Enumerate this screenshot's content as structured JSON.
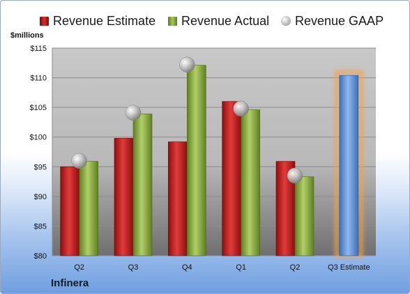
{
  "chart_data": {
    "type": "bar",
    "ylabel": "$millions",
    "ylim": [
      80,
      115
    ],
    "yticks": [
      80,
      85,
      90,
      95,
      100,
      105,
      110,
      115
    ],
    "ytick_labels": [
      "$80",
      "$85",
      "$90",
      "$95",
      "$100",
      "$105",
      "$110",
      "$115"
    ],
    "categories": [
      "Q2",
      "Q3",
      "Q4",
      "Q1",
      "Q2",
      "Q3 Estimate"
    ],
    "series": [
      {
        "name": "Revenue Estimate",
        "type": "bar",
        "color": "#c9272b",
        "values": [
          95.0,
          99.8,
          99.2,
          106.0,
          95.9,
          null
        ]
      },
      {
        "name": "Revenue Actual",
        "type": "bar",
        "color": "#9bbb59",
        "values": [
          95.9,
          103.9,
          112.1,
          104.6,
          93.3,
          null
        ]
      },
      {
        "name": "Revenue GAAP",
        "type": "scatter",
        "color": "#bfbfbf",
        "values": [
          96.0,
          104.1,
          112.2,
          104.8,
          93.5,
          null
        ]
      },
      {
        "name": "",
        "type": "bar",
        "color": "#6f9fe0",
        "highlight": "#f5a04a",
        "values": [
          null,
          null,
          null,
          null,
          null,
          110.4
        ]
      }
    ],
    "grid": true,
    "legend": "top"
  },
  "brand": "Infinera"
}
